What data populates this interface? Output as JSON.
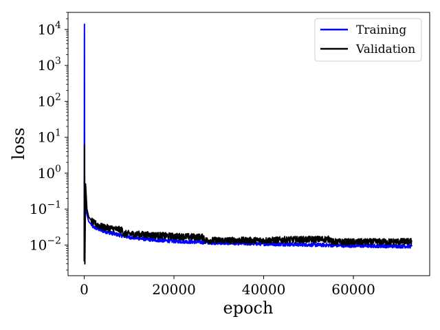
{
  "chart_data": {
    "type": "line",
    "xlabel": "epoch",
    "ylabel": "loss",
    "xlim": [
      -3600,
      77000
    ],
    "ylim": [
      0.0014,
      30000
    ],
    "yscale": "log",
    "grid": false,
    "legend_position": "top-right",
    "x_ticks": [
      {
        "value": 0,
        "label": "0"
      },
      {
        "value": 20000,
        "label": "20000"
      },
      {
        "value": 40000,
        "label": "40000"
      },
      {
        "value": 60000,
        "label": "60000"
      }
    ],
    "y_ticks": [
      {
        "value": 0.01,
        "base": "10",
        "exp": "−2"
      },
      {
        "value": 0.1,
        "base": "10",
        "exp": "−1"
      },
      {
        "value": 1,
        "base": "10",
        "exp": "0"
      },
      {
        "value": 10,
        "base": "10",
        "exp": "1"
      },
      {
        "value": 100,
        "base": "10",
        "exp": "2"
      },
      {
        "value": 1000,
        "base": "10",
        "exp": "3"
      },
      {
        "value": 10000,
        "base": "10",
        "exp": "4"
      }
    ],
    "series": [
      {
        "name": "Training",
        "color": "#0000ff",
        "noise": 0.05,
        "points": [
          [
            0,
            0.004
          ],
          [
            50,
            14000
          ],
          [
            120,
            0.0035
          ],
          [
            250,
            0.5
          ],
          [
            500,
            0.08
          ],
          [
            1000,
            0.045
          ],
          [
            2000,
            0.032
          ],
          [
            4000,
            0.025
          ],
          [
            7000,
            0.02
          ],
          [
            10000,
            0.0165
          ],
          [
            15000,
            0.014
          ],
          [
            20000,
            0.0128
          ],
          [
            30000,
            0.0115
          ],
          [
            40000,
            0.0108
          ],
          [
            50000,
            0.0102
          ],
          [
            60000,
            0.0096
          ],
          [
            73000,
            0.0092
          ]
        ]
      },
      {
        "name": "Validation",
        "color": "#000000",
        "noise": 0.09,
        "points": [
          [
            0,
            0.0035
          ],
          [
            60,
            6
          ],
          [
            140,
            0.003
          ],
          [
            300,
            0.5
          ],
          [
            600,
            0.1
          ],
          [
            1000,
            0.06
          ],
          [
            2000,
            0.042
          ],
          [
            4000,
            0.032
          ],
          [
            8500,
            0.026
          ],
          [
            8700,
            0.021
          ],
          [
            15000,
            0.019
          ],
          [
            20000,
            0.0175
          ],
          [
            26700,
            0.0165
          ],
          [
            26800,
            0.0135
          ],
          [
            35000,
            0.0135
          ],
          [
            40000,
            0.0134
          ],
          [
            45000,
            0.014
          ],
          [
            50000,
            0.0143
          ],
          [
            55000,
            0.0145
          ],
          [
            55200,
            0.0122
          ],
          [
            63000,
            0.0122
          ],
          [
            73000,
            0.0125
          ]
        ]
      }
    ]
  }
}
